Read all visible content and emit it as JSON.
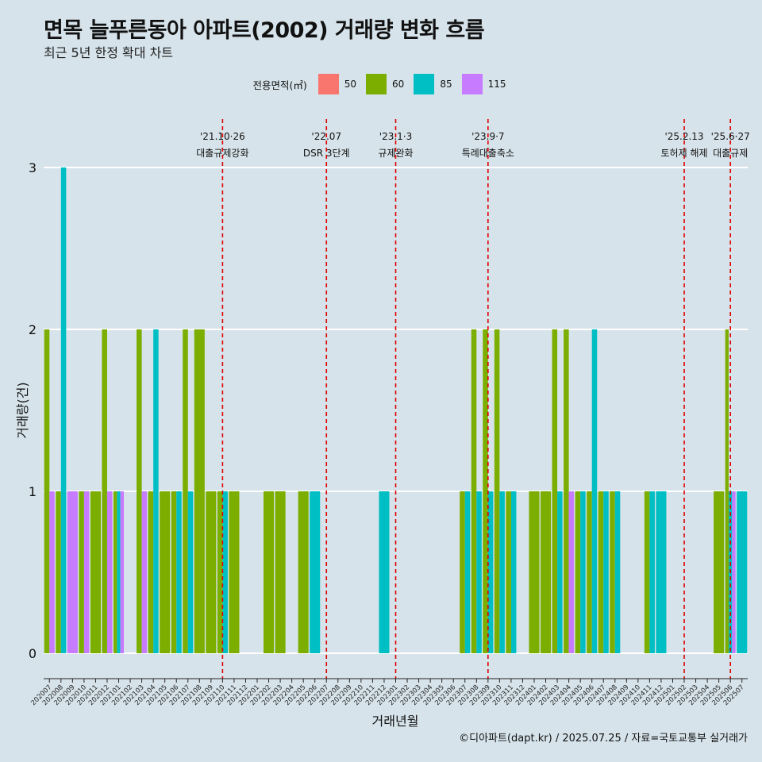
{
  "title": "면목 늘푸른동아 아파트(2002) 거래량 변화 흐름",
  "subtitle": "최근 5년 한정 확대 차트",
  "caption": "©디아파트(dapt.kr) / 2025.07.25 / 자료=국토교통부 실거래가",
  "legend": {
    "title": "전용면적(㎡)",
    "items": [
      {
        "label": "50",
        "color": "#f8766d"
      },
      {
        "label": "60",
        "color": "#7cae00"
      },
      {
        "label": "85",
        "color": "#00bfc4"
      },
      {
        "label": "115",
        "color": "#c77cff"
      }
    ]
  },
  "chart_data": {
    "type": "bar",
    "stacked": false,
    "xlabel": "거래년월",
    "ylabel": "거래량(건)",
    "ylim": [
      0,
      3
    ],
    "yticks": [
      0,
      1,
      2,
      3
    ],
    "categories": [
      "202007",
      "202008",
      "202009",
      "202010",
      "202011",
      "202012",
      "202101",
      "202102",
      "202103",
      "202104",
      "202105",
      "202106",
      "202107",
      "202108",
      "202109",
      "202110",
      "202111",
      "202112",
      "202201",
      "202202",
      "202203",
      "202204",
      "202205",
      "202206",
      "202207",
      "202208",
      "202209",
      "202210",
      "202211",
      "202212",
      "202301",
      "202302",
      "202303",
      "202304",
      "202305",
      "202306",
      "202307",
      "202308",
      "202309",
      "202310",
      "202311",
      "202312",
      "202401",
      "202402",
      "202403",
      "202404",
      "202405",
      "202406",
      "202407",
      "202408",
      "202409",
      "202410",
      "202411",
      "202412",
      "202501",
      "202502",
      "202503",
      "202504",
      "202505",
      "202506",
      "202507"
    ],
    "series": [
      {
        "name": "60",
        "color": "#7cae00",
        "values": [
          2,
          1,
          0,
          1,
          1,
          2,
          1,
          0,
          2,
          1,
          1,
          1,
          2,
          2,
          1,
          1,
          1,
          0,
          0,
          1,
          1,
          0,
          1,
          0,
          0,
          0,
          0,
          0,
          0,
          0,
          0,
          0,
          0,
          0,
          0,
          0,
          1,
          2,
          2,
          2,
          1,
          0,
          1,
          1,
          2,
          2,
          1,
          1,
          1,
          1,
          0,
          0,
          1,
          0,
          0,
          0,
          0,
          0,
          1,
          2,
          0
        ]
      },
      {
        "name": "85",
        "color": "#00bfc4",
        "values": [
          0,
          3,
          0,
          0,
          0,
          0,
          1,
          0,
          0,
          2,
          0,
          1,
          1,
          0,
          0,
          1,
          0,
          0,
          0,
          0,
          0,
          0,
          0,
          1,
          0,
          0,
          0,
          0,
          0,
          1,
          0,
          0,
          0,
          0,
          0,
          0,
          1,
          1,
          1,
          1,
          1,
          0,
          0,
          0,
          1,
          0,
          1,
          2,
          1,
          1,
          0,
          0,
          1,
          1,
          0,
          0,
          0,
          0,
          0,
          1,
          1
        ]
      },
      {
        "name": "115",
        "color": "#c77cff",
        "values": [
          1,
          0,
          1,
          1,
          0,
          1,
          1,
          0,
          1,
          0,
          0,
          0,
          0,
          0,
          0,
          0,
          0,
          0,
          0,
          0,
          0,
          0,
          0,
          0,
          0,
          0,
          0,
          0,
          0,
          0,
          0,
          0,
          0,
          0,
          0,
          0,
          0,
          0,
          0,
          0,
          0,
          0,
          0,
          0,
          0,
          1,
          0,
          0,
          0,
          0,
          0,
          0,
          0,
          0,
          0,
          0,
          0,
          0,
          0,
          1,
          0
        ]
      }
    ],
    "events": [
      {
        "index": 15,
        "date": "'21.10·26",
        "label": "대출규제강화"
      },
      {
        "index": 24,
        "date": "'22.07",
        "label": "DSR 3단계"
      },
      {
        "index": 30,
        "date": "'23.1·3",
        "label": "규제완화"
      },
      {
        "index": 38,
        "date": "'23.9·7",
        "label": "특례대출축소"
      },
      {
        "index": 55,
        "date": "'25.2.13",
        "label": "토허제 해제"
      },
      {
        "index": 59,
        "date": "'25.6·27",
        "label": "대출규제"
      }
    ]
  }
}
